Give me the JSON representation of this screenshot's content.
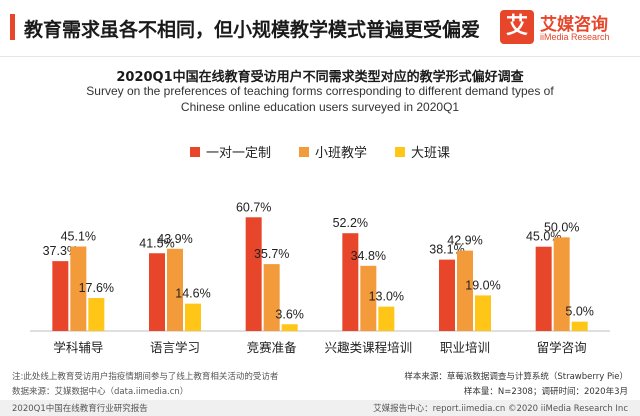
{
  "header": {
    "title": "教育需求虽各不相同，但小规模教学模式普遍更受偏爱",
    "logo_mark": "艾",
    "logo_name": "艾媒咨询",
    "logo_sub": "iiMedia Research"
  },
  "colors": {
    "accent": "#e8462b",
    "series": [
      "#e8462b",
      "#f39a3b",
      "#ffc517"
    ]
  },
  "chart_data": {
    "type": "bar",
    "title": "2020Q1中国在线教育受访用户不同需求类型对应的教学形式偏好调查",
    "subtitle_lines": [
      "Survey on the preferences of teaching forms corresponding to different demand types of",
      "Chinese online education users surveyed in 2020Q1"
    ],
    "categories": [
      "学科辅导",
      "语言学习",
      "竞赛准备",
      "兴趣类课程培训",
      "职业培训",
      "留学咨询"
    ],
    "series": [
      {
        "name": "一对一定制",
        "values": [
          37.3,
          41.5,
          60.7,
          52.2,
          38.1,
          45.0
        ]
      },
      {
        "name": "小班教学",
        "values": [
          45.1,
          43.9,
          35.7,
          34.8,
          42.9,
          50.0
        ]
      },
      {
        "name": "大班课",
        "values": [
          17.6,
          14.6,
          3.6,
          13.0,
          19.0,
          5.0
        ]
      }
    ],
    "value_labels": [
      [
        "37.3%",
        "41.5%",
        "60.7%",
        "52.2%",
        "38.1%",
        "45.0%"
      ],
      [
        "45.1%",
        "43.9%",
        "35.7%",
        "34.8%",
        "42.9%",
        "50.0%"
      ],
      [
        "17.6%",
        "14.6%",
        "3.6%",
        "13.0%",
        "19.0%",
        "5.0%"
      ]
    ],
    "legend_position": "top-center",
    "ylim": [
      0,
      70
    ],
    "grid": false
  },
  "notes": {
    "line1": "注:此处线上教育受访用户指疫情期间参与了线上教育相关活动的受访者",
    "line2": "数据来源：艾媒数据中心（data.iimedia.cn）"
  },
  "sample": {
    "line1": "样本来源：草莓派数据调查与计算系统（Strawberry Pie）",
    "line2": "样本量：N=2308；调研时间：2020年3月"
  },
  "footer": {
    "left": "2020Q1中国在线教育行业研究报告",
    "right": "艾媒报告中心：report.iimedia.cn  ©2020  iiMedia Research  Inc"
  }
}
